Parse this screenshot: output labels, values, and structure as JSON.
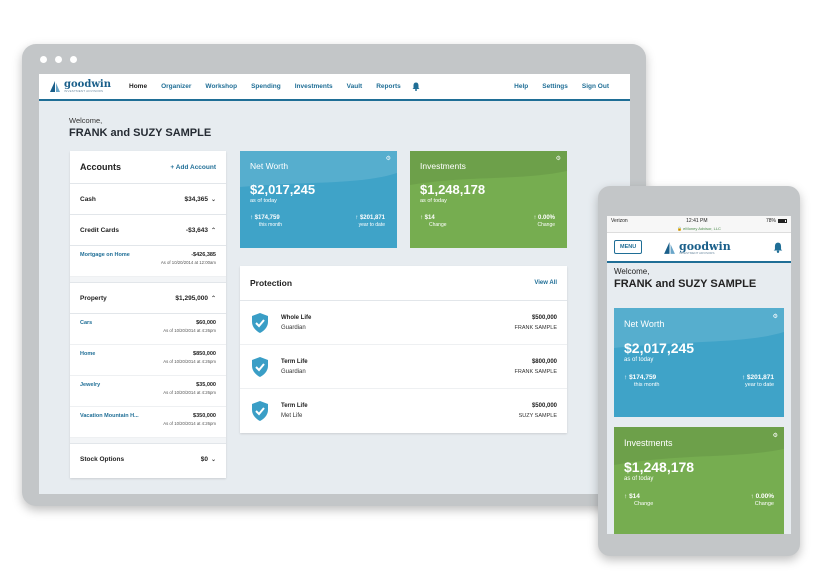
{
  "brand": {
    "name": "goodwin",
    "tagline": "INVESTMENT ADVISORS"
  },
  "colors": {
    "accent": "#1f6e96",
    "net_worth_tile": "#3fa3c8",
    "investments_tile": "#76ad50",
    "shield": "#3a9ec6"
  },
  "nav": {
    "left": [
      "Home",
      "Organizer",
      "Workshop",
      "Spending",
      "Investments",
      "Vault",
      "Reports"
    ],
    "active": "Home",
    "right": [
      "Help",
      "Settings",
      "Sign Out"
    ],
    "bell_icon": "bell-icon"
  },
  "welcome": {
    "greeting": "Welcome,",
    "name": "FRANK and SUZY SAMPLE"
  },
  "accounts": {
    "title": "Accounts",
    "add_label": "Add Account",
    "cash": {
      "label": "Cash",
      "value": "$34,365"
    },
    "credit": {
      "label": "Credit Cards",
      "value": "-$3,643"
    },
    "credit_items": [
      {
        "label": "Mortgage on Home",
        "amount": "-$426,385",
        "date": "As of 10/20/2014 at 12:00am"
      }
    ],
    "property": {
      "label": "Property",
      "value": "$1,295,000"
    },
    "property_items": [
      {
        "label": "Cars",
        "amount": "$60,000",
        "date": "As of 10/20/2014 at 4:26pm"
      },
      {
        "label": "Home",
        "amount": "$850,000",
        "date": "As of 10/20/2014 at 4:26pm"
      },
      {
        "label": "Jewelry",
        "amount": "$35,000",
        "date": "As of 10/20/2014 at 4:26pm"
      },
      {
        "label": "Vacation Mountain H...",
        "amount": "$350,000",
        "date": "As of 10/20/2014 at 4:26pm"
      }
    ],
    "stock": {
      "label": "Stock Options",
      "value": "$0"
    }
  },
  "net_worth": {
    "title": "Net Worth",
    "value": "$2,017,245",
    "sub": "as of today",
    "left_amt": "$174,759",
    "left_cap": "this month",
    "right_amt": "$201,871",
    "right_cap": "year to date"
  },
  "investments": {
    "title": "Investments",
    "value": "$1,248,178",
    "sub": "as of today",
    "left_amt": "$14",
    "left_cap": "Change",
    "right_amt": "0.00%",
    "right_cap": "Change"
  },
  "protection": {
    "title": "Protection",
    "view_all": "View All",
    "rows": [
      {
        "type": "Whole Life",
        "provider": "Guardian",
        "amount": "$500,000",
        "owner": "FRANK SAMPLE"
      },
      {
        "type": "Term Life",
        "provider": "Guardian",
        "amount": "$800,000",
        "owner": "FRANK SAMPLE"
      },
      {
        "type": "Term Life",
        "provider": "Met Life",
        "amount": "$500,000",
        "owner": "SUZY SAMPLE"
      }
    ]
  },
  "phone": {
    "carrier": "Verizon",
    "time": "12:41 PM",
    "battery": "78%",
    "url": "eMoney Advisor, LLC",
    "menu_label": "MENU"
  }
}
